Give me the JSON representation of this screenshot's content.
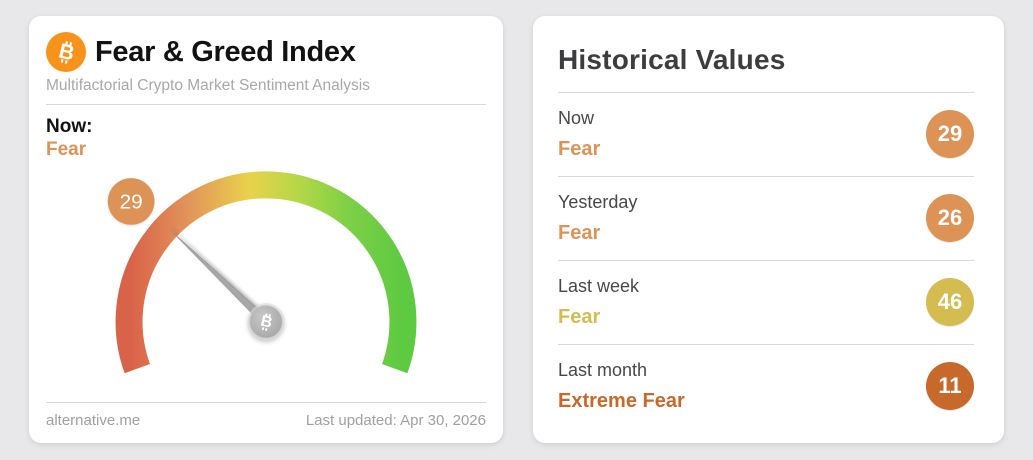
{
  "left_card": {
    "title": "Fear & Greed Index",
    "subtitle": "Multifactorial Crypto Market Sentiment Analysis",
    "now_label": "Now:",
    "now_sentiment": "Fear",
    "now_color": "#dd9356",
    "gauge": {
      "type": "gauge",
      "value": 29,
      "min": 0,
      "max": 100,
      "start_angle_deg": 200,
      "sweep_deg": 220,
      "badge_value": 29,
      "badge_color": "#dd9356",
      "scale_gradient": [
        "#d96349",
        "#e1915a",
        "#e9d24b",
        "#b5d747",
        "#7fd046",
        "#5eca42"
      ]
    },
    "footer_left": "alternative.me",
    "footer_right": "Last updated: Apr 30, 2026"
  },
  "right_card": {
    "title": "Historical Values",
    "rows": [
      {
        "label": "Now",
        "sentiment": "Fear",
        "value": "29",
        "color": "#dd9356"
      },
      {
        "label": "Yesterday",
        "sentiment": "Fear",
        "value": "26",
        "color": "#dd9356"
      },
      {
        "label": "Last week",
        "sentiment": "Fear",
        "value": "46",
        "color": "#d5bc50"
      },
      {
        "label": "Last month",
        "sentiment": "Extreme Fear",
        "value": "11",
        "color": "#c8692c"
      }
    ]
  },
  "colors": {
    "page_bg": "#e8e8ea",
    "card_bg": "#ffffff",
    "title_text": "#121212",
    "subtitle_text": "#a8a8a8",
    "divider": "#d8d8d8",
    "footer_text": "#9fa0a2",
    "heading_text": "#3d3d3f",
    "row_label_text": "#48484a",
    "bitcoin_orange": "#f7931a",
    "needle_gray": "#a7a7a7"
  },
  "icons": {
    "header_logo": "bitcoin-icon",
    "gauge_hub": "bitcoin-icon"
  }
}
